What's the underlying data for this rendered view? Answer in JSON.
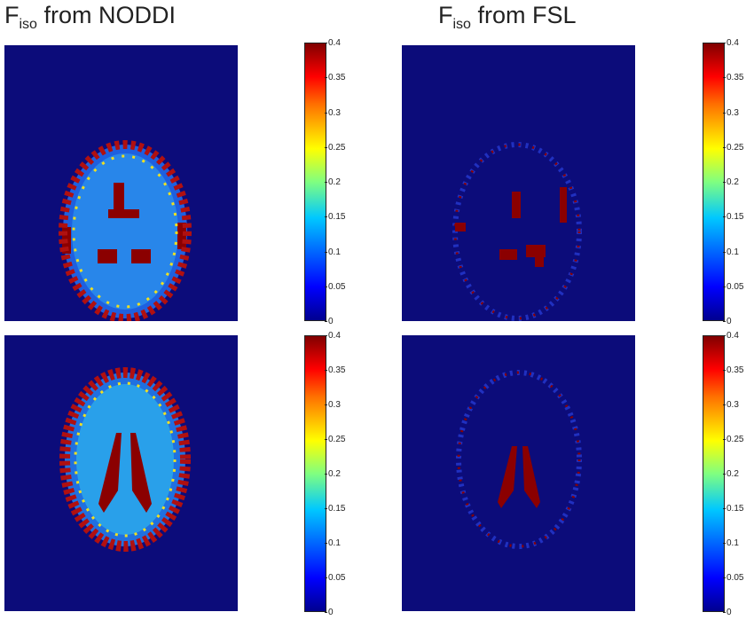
{
  "titles": {
    "left": {
      "main": "F",
      "sub": "iso",
      "rest": " from NODDI"
    },
    "right": {
      "main": "F",
      "sub": "iso",
      "rest": " from FSL"
    }
  },
  "colorbar": {
    "ticks": [
      "0.4",
      "0.35",
      "0.3",
      "0.25",
      "0.2",
      "0.15",
      "0.1",
      "0.05",
      "0"
    ],
    "colormap": "jet",
    "range": [
      0,
      0.4
    ]
  },
  "colors": {
    "background": "#0c0c7a",
    "high": "#8b0000",
    "low": "#1e2dbf"
  }
}
